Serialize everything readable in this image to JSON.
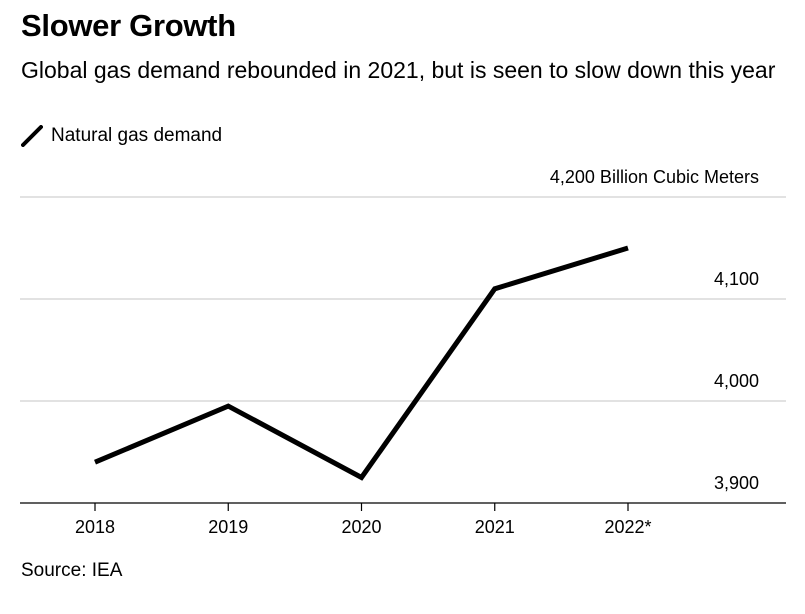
{
  "title": "Slower Growth",
  "subtitle": "Global gas demand rebounded in 2021, but is seen to slow down this year",
  "legend": {
    "label": "Natural gas demand",
    "color": "#000000"
  },
  "source": "Source: IEA",
  "chart_data": {
    "type": "line",
    "title": "Slower Growth",
    "subtitle": "Global gas demand rebounded in 2021, but is seen to slow down this year",
    "x": [
      "2018",
      "2019",
      "2020",
      "2021",
      "2022*"
    ],
    "series": [
      {
        "name": "Natural gas demand",
        "values": [
          3940,
          3995,
          3925,
          4110,
          4150
        ]
      }
    ],
    "y_unit_label": "4,200 Billion Cubic Meters",
    "y_ticks": [
      {
        "value": 3900,
        "label": "3,900"
      },
      {
        "value": 4000,
        "label": "4,000"
      },
      {
        "value": 4100,
        "label": "4,100"
      },
      {
        "value": 4200,
        "label": "4,200 Billion Cubic Meters"
      }
    ],
    "ylim": [
      3900,
      4200
    ],
    "grid": true,
    "legend_position": "top-left",
    "ylabel": "Billion Cubic Meters",
    "xlabel": ""
  }
}
